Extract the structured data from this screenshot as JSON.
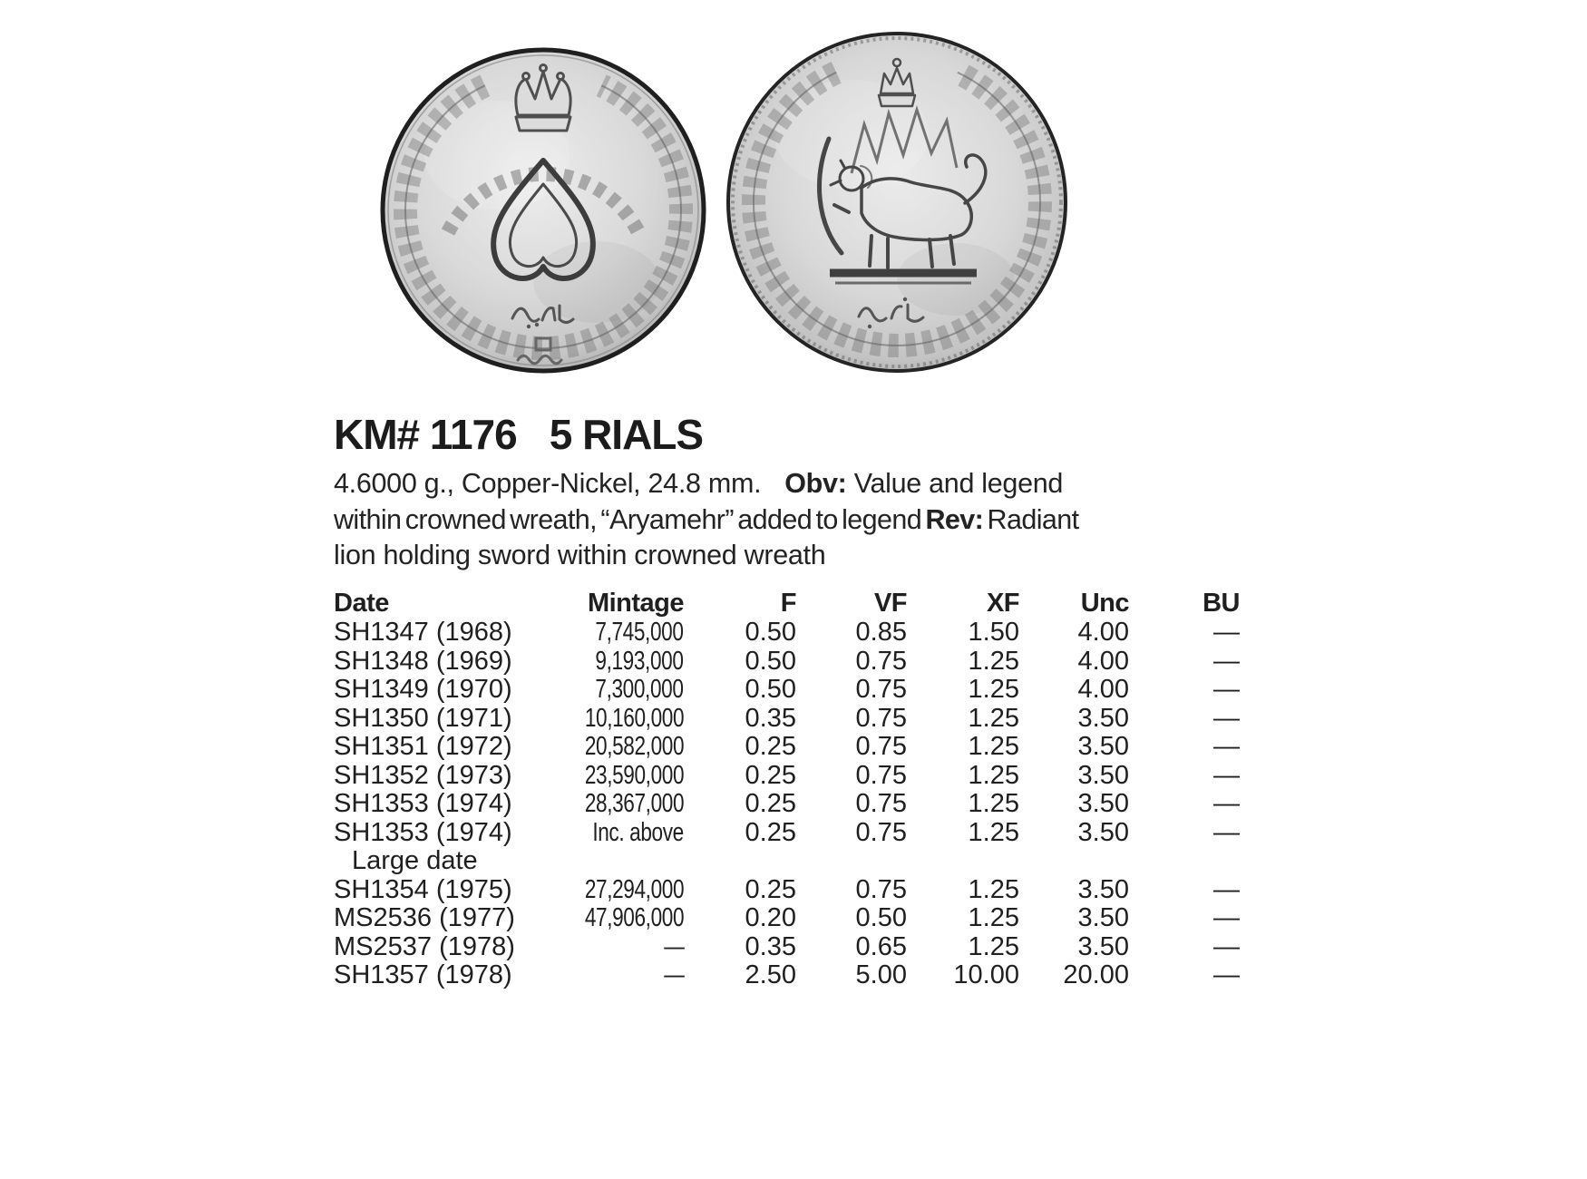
{
  "entry": {
    "km_number": "KM# 1176",
    "denomination": "5 RIALS",
    "description": {
      "specs": "4.6000 g., Copper-Nickel, 24.8 mm.",
      "obv_label": "Obv:",
      "line1_rest": " Value and legend",
      "line2_start": "within crowned wreath, “Aryamehr” added to legend ",
      "rev_label": "Rev:",
      "line2_end": " Radiant",
      "line3": "lion holding sword within crowned wreath"
    }
  },
  "coins": {
    "obverse": {
      "label": "obverse — value ۵ within crowned wreath",
      "numeral": "۵",
      "unit_script": "ریال"
    },
    "reverse": {
      "label": "reverse — radiant lion holding sword within crowned wreath"
    }
  },
  "table": {
    "headers": [
      "Date",
      "Mintage",
      "F",
      "VF",
      "XF",
      "Unc",
      "BU"
    ],
    "rows": [
      {
        "cells": [
          "SH1347 (1968)",
          "7,745,000",
          "0.50",
          "0.85",
          "1.50",
          "4.00",
          "—"
        ]
      },
      {
        "cells": [
          "SH1348 (1969)",
          "9,193,000",
          "0.50",
          "0.75",
          "1.25",
          "4.00",
          "—"
        ]
      },
      {
        "cells": [
          "SH1349 (1970)",
          "7,300,000",
          "0.50",
          "0.75",
          "1.25",
          "4.00",
          "—"
        ]
      },
      {
        "cells": [
          "SH1350 (1971)",
          "10,160,000",
          "0.35",
          "0.75",
          "1.25",
          "3.50",
          "—"
        ]
      },
      {
        "cells": [
          "SH1351 (1972)",
          "20,582,000",
          "0.25",
          "0.75",
          "1.25",
          "3.50",
          "—"
        ]
      },
      {
        "cells": [
          "SH1352 (1973)",
          "23,590,000",
          "0.25",
          "0.75",
          "1.25",
          "3.50",
          "—"
        ]
      },
      {
        "cells": [
          "SH1353 (1974)",
          "28,367,000",
          "0.25",
          "0.75",
          "1.25",
          "3.50",
          "—"
        ]
      },
      {
        "cells": [
          "SH1353 (1974)",
          "Inc. above",
          "0.25",
          "0.75",
          "1.25",
          "3.50",
          "—"
        ],
        "note": "Large date"
      },
      {
        "cells": [
          "SH1354 (1975)",
          "27,294,000",
          "0.25",
          "0.75",
          "1.25",
          "3.50",
          "—"
        ]
      },
      {
        "cells": [
          "MS2536 (1977)",
          "47,906,000",
          "0.20",
          "0.50",
          "1.25",
          "3.50",
          "—"
        ]
      },
      {
        "cells": [
          "MS2537 (1978)",
          "—",
          "0.35",
          "0.65",
          "1.25",
          "3.50",
          "—"
        ]
      },
      {
        "cells": [
          "SH1357 (1978)",
          "—",
          "2.50",
          "5.00",
          "10.00",
          "20.00",
          "—"
        ]
      }
    ]
  }
}
